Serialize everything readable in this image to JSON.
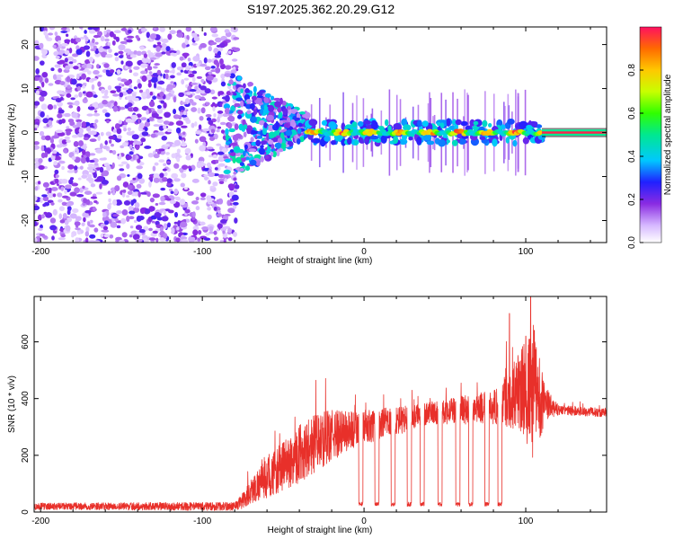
{
  "title": "S197.2025.362.20.29.G12",
  "chart_data": [
    {
      "type": "heatmap",
      "xlabel": "Height of straight line (km)",
      "ylabel": "Frequency (Hz)",
      "xlim": [
        -204,
        150
      ],
      "ylim": [
        -25,
        24
      ],
      "xticks": [
        -200,
        -100,
        0,
        100
      ],
      "yticks": [
        -20,
        -10,
        0,
        10,
        20
      ],
      "colorbar": {
        "label": "Normalized spectral amplitude",
        "range": [
          0,
          1
        ],
        "ticks": [
          "0.0",
          "0.2",
          "0.4",
          "0.6",
          "0.8"
        ],
        "tick_values": [
          0.0,
          0.2,
          0.4,
          0.6,
          0.8
        ]
      },
      "regions": [
        {
          "name": "noise",
          "x_range": [
            -204,
            -78
          ],
          "frequency_range": [
            -25,
            24
          ],
          "amplitude": [
            0.05,
            0.25
          ]
        },
        {
          "name": "transition",
          "x_range": [
            -85,
            -35
          ],
          "frequency_range": [
            -7,
            11
          ],
          "amplitude": [
            0.1,
            0.5
          ]
        },
        {
          "name": "signal-line",
          "x_range": [
            -35,
            150
          ],
          "frequency": 0,
          "amplitude": [
            0.4,
            1.0
          ]
        }
      ]
    },
    {
      "type": "line",
      "xlabel": "Height of straight line (km)",
      "ylabel": "SNR (10 * v/v)",
      "xlim": [
        -204,
        150
      ],
      "ylim": [
        0,
        760
      ],
      "xticks": [
        -200,
        -100,
        0,
        100
      ],
      "yticks": [
        0,
        200,
        400,
        600
      ],
      "series": [
        {
          "name": "SNR",
          "color": "#e8302a",
          "envelope": [
            {
              "x": -204,
              "mean": 20,
              "spread": 12
            },
            {
              "x": -80,
              "mean": 20,
              "spread": 15
            },
            {
              "x": -75,
              "mean": 40,
              "spread": 30
            },
            {
              "x": -65,
              "mean": 100,
              "spread": 60
            },
            {
              "x": -50,
              "mean": 160,
              "spread": 90
            },
            {
              "x": -35,
              "mean": 230,
              "spread": 110
            },
            {
              "x": -20,
              "mean": 270,
              "spread": 90
            },
            {
              "x": 0,
              "mean": 300,
              "spread": 60
            },
            {
              "x": 20,
              "mean": 320,
              "spread": 50
            },
            {
              "x": 40,
              "mean": 350,
              "spread": 40
            },
            {
              "x": 60,
              "mean": 360,
              "spread": 50
            },
            {
              "x": 80,
              "mean": 370,
              "spread": 60
            },
            {
              "x": 95,
              "mean": 420,
              "spread": 130
            },
            {
              "x": 105,
              "mean": 430,
              "spread": 250
            },
            {
              "x": 112,
              "mean": 380,
              "spread": 60
            },
            {
              "x": 120,
              "mean": 360,
              "spread": 18
            },
            {
              "x": 150,
              "mean": 350,
              "spread": 15
            }
          ],
          "dropouts_x": [
            -2,
            8,
            18,
            28,
            36,
            47,
            58,
            66,
            76,
            84
          ],
          "dropout_value": 20,
          "peaks": [
            {
              "x": 103,
              "y": 760
            },
            {
              "x": 90,
              "y": 700
            },
            {
              "x": 100,
              "y": 620
            }
          ]
        }
      ]
    }
  ]
}
